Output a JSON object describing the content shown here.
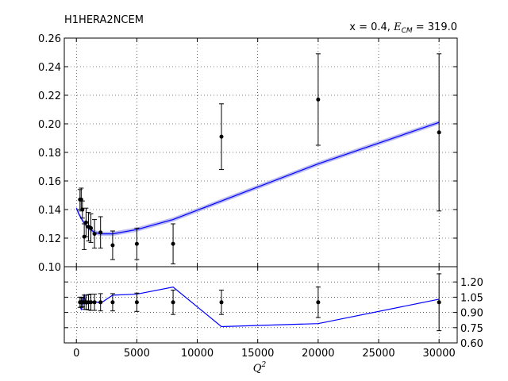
{
  "chart_data": {
    "type": "scatter",
    "title": "H1HERA2NCEM",
    "annotation": {
      "x_text": "x = 0.4, ",
      "e_symbol": "E",
      "e_subscript": "CM",
      "e_value": " = 319.0"
    },
    "xlabel": "Q",
    "xlabel_sup": "2",
    "xlim": [
      -1000,
      31500
    ],
    "x_ticks": [
      0,
      5000,
      10000,
      15000,
      20000,
      25000,
      30000
    ],
    "x_tick_labels": [
      "0",
      "5000",
      "10000",
      "15000",
      "20000",
      "25000",
      "30000"
    ],
    "main": {
      "ylim": [
        0.1,
        0.26
      ],
      "y_ticks": [
        0.1,
        0.12,
        0.14,
        0.16,
        0.18,
        0.2,
        0.22,
        0.24,
        0.26
      ],
      "y_tick_labels": [
        "0.10",
        "0.12",
        "0.14",
        "0.16",
        "0.18",
        "0.20",
        "0.22",
        "0.24",
        "0.26"
      ],
      "data": {
        "x": [
          300,
          400,
          500,
          650,
          800,
          1000,
          1200,
          1500,
          2000,
          3000,
          5000,
          8000,
          12000,
          20000,
          30000
        ],
        "y": [
          0.147,
          0.147,
          0.14,
          0.121,
          0.131,
          0.128,
          0.127,
          0.123,
          0.124,
          0.115,
          0.116,
          0.116,
          0.191,
          0.217,
          0.194
        ],
        "yerr": [
          0.007,
          0.008,
          0.006,
          0.009,
          0.01,
          0.01,
          0.01,
          0.01,
          0.011,
          0.01,
          0.011,
          0.014,
          0.023,
          0.032,
          0.055
        ]
      },
      "theory": {
        "x": [
          0,
          200,
          400,
          600,
          800,
          1000,
          1500,
          2000,
          3000,
          5000,
          8000,
          12000,
          20000,
          30000
        ],
        "y": [
          0.141,
          0.137,
          0.134,
          0.131,
          0.129,
          0.127,
          0.124,
          0.123,
          0.123,
          0.126,
          0.133,
          0.146,
          0.172,
          0.201
        ],
        "band": 0.0015
      }
    },
    "ratio": {
      "ylim": [
        0.6,
        1.35
      ],
      "y_ticks": [
        0.6,
        0.75,
        0.9,
        1.05,
        1.2
      ],
      "y_tick_labels": [
        "0.60",
        "0.75",
        "0.90",
        "1.05",
        "1.20"
      ],
      "data": {
        "x": [
          300,
          400,
          500,
          650,
          800,
          1000,
          1200,
          1500,
          2000,
          3000,
          5000,
          8000,
          12000,
          20000,
          30000
        ],
        "y": [
          1.0,
          1.0,
          1.0,
          1.0,
          1.0,
          1.0,
          1.0,
          1.0,
          1.0,
          1.0,
          1.0,
          1.0,
          1.0,
          1.0,
          1.0
        ],
        "yerr": [
          0.05,
          0.05,
          0.045,
          0.07,
          0.07,
          0.075,
          0.08,
          0.08,
          0.085,
          0.085,
          0.09,
          0.12,
          0.12,
          0.15,
          0.28
        ]
      },
      "theory": {
        "x": [
          300,
          400,
          500,
          650,
          800,
          1000,
          1200,
          1500,
          2000,
          3000,
          5000,
          8000,
          12000,
          20000,
          30000
        ],
        "y": [
          0.96,
          0.93,
          0.96,
          1.08,
          0.98,
          0.99,
          1.0,
          1.01,
          0.99,
          1.07,
          1.08,
          1.15,
          0.76,
          0.79,
          1.03
        ]
      }
    },
    "grid": true,
    "colors": {
      "data": "#000000",
      "theory": "#0000ff",
      "band": "#aaaaee"
    }
  }
}
